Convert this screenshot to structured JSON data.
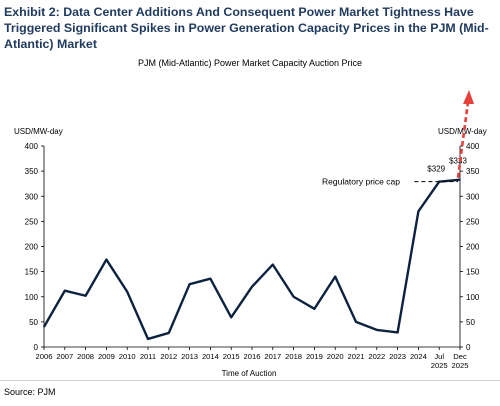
{
  "header": {
    "title": "Exhibit 2: Data Center Additions And Consequent Power Market Tightness Have Triggered Significant Spikes in Power Generation Capacity Prices in the PJM (Mid-Atlantic) Market"
  },
  "footer": {
    "source": "Source: PJM"
  },
  "chart_data": {
    "type": "line",
    "title": "PJM (Mid-Atlantic) Power Market Capacity Auction Price",
    "xlabel": "Time of Auction",
    "ylabel_left": "USD/MW-day",
    "ylabel_right": "USD/MW-day",
    "ylim": [
      0,
      400
    ],
    "yticks": [
      0,
      50,
      100,
      150,
      200,
      250,
      300,
      350,
      400
    ],
    "categories": [
      "2006",
      "2007",
      "2008",
      "2009",
      "2010",
      "2011",
      "2012",
      "2013",
      "2014",
      "2015",
      "2016",
      "2017",
      "2018",
      "2019",
      "2020",
      "2021",
      "2022",
      "2023",
      "2024",
      "Jul 2025",
      "Dec 2025"
    ],
    "series": [
      {
        "color": "#0d2240",
        "values": [
          40,
          112,
          102,
          174,
          110,
          16,
          28,
          125,
          136,
          59,
          120,
          164,
          100,
          76,
          140,
          50,
          34,
          29,
          270,
          329,
          333
        ]
      }
    ],
    "annotations": {
      "price_cap_label": "Regulatory price cap",
      "price_cap_value": 329,
      "label_jul_2025": "$329",
      "label_dec_2025": "$333",
      "arrow_color": "#e8413c"
    },
    "grid": false
  }
}
